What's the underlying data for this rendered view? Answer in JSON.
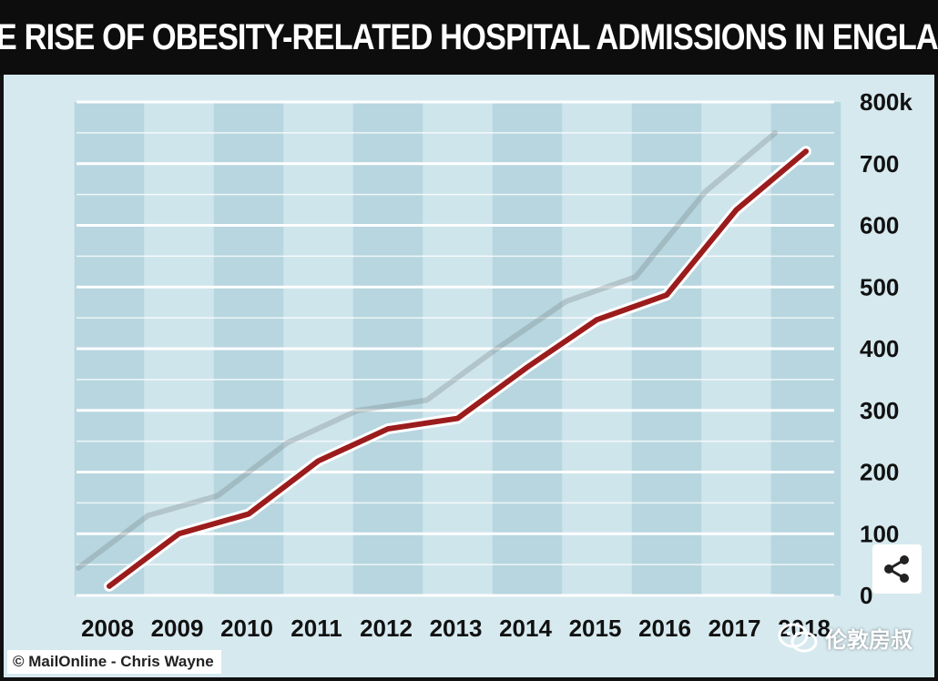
{
  "title": "THE RISE OF OBESITY-RELATED HOSPITAL ADMISSIONS IN ENGLAND",
  "credit": "© MailOnline - Chris Wayne",
  "watermark": "伦敦房叔",
  "icons": {
    "share": "share-icon",
    "watermark": "wechat-icon"
  },
  "colors": {
    "line": "#9b1c1c",
    "line_outline": "#ffffff",
    "band_dark": "#b7d6df",
    "band_light": "#cfe5ec",
    "gridline": "#ffffff",
    "title_bg": "#0d0d0d"
  },
  "chart_data": {
    "type": "line",
    "title": "THE RISE OF OBESITY-RELATED HOSPITAL ADMISSIONS IN ENGLAND",
    "xlabel": "",
    "ylabel": "",
    "categories": [
      "2008",
      "2009",
      "2010",
      "2011",
      "2012",
      "2013",
      "2014",
      "2015",
      "2016",
      "2017",
      "2018"
    ],
    "series": [
      {
        "name": "Obesity-related hospital admissions",
        "values": [
          15,
          100,
          132,
          218,
          270,
          287,
          370,
          447,
          487,
          625,
          720
        ]
      }
    ],
    "y_ticks": [
      0,
      100,
      200,
      300,
      400,
      500,
      600,
      700,
      800
    ],
    "y_tick_labels": [
      "0",
      "100",
      "200",
      "300",
      "400",
      "500",
      "600",
      "700",
      "800k"
    ],
    "ylim": [
      0,
      800
    ],
    "grid": true,
    "axis_position": "right"
  }
}
